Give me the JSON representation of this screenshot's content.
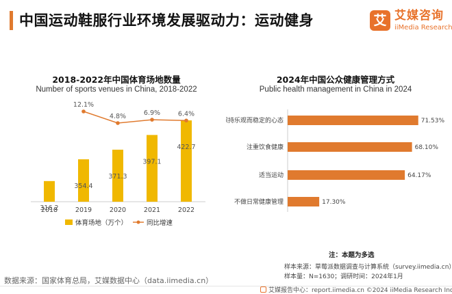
{
  "header": {
    "title": "中国运动鞋服行业环境发展驱动力：运动健身",
    "logo_mark": "艾",
    "logo_cn": "艾媒咨询",
    "logo_en": "iiMedia Research"
  },
  "colors": {
    "accent": "#e07a2e",
    "bar_yellow": "#f0b800",
    "line_orange": "#e07a2e",
    "hbar_orange": "#e07a2e"
  },
  "left_panel": {
    "title": "2018-2022年中国体育场地数量",
    "subtitle": "Number of sports venues in China, 2018-2022"
  },
  "right_panel": {
    "title": "2024年中国公众健康管理方式",
    "subtitle": "Public health management in China in 2024"
  },
  "chart_data": [
    {
      "type": "bar",
      "categories": [
        "2018",
        "2019",
        "2020",
        "2021",
        "2022"
      ],
      "series": [
        {
          "name": "体育场地（万个）",
          "type": "bar",
          "values": [
            316.2,
            354.4,
            371.3,
            397.1,
            422.7
          ],
          "labels": [
            "316.2",
            "354.4",
            "371.3",
            "397.1",
            "422.7"
          ]
        },
        {
          "name": "同比增速",
          "type": "line",
          "values": [
            null,
            12.1,
            4.8,
            6.9,
            6.4
          ],
          "labels": [
            "",
            "12.1%",
            "4.8%",
            "6.9%",
            "6.4%"
          ]
        }
      ],
      "legend": "bottom"
    },
    {
      "type": "bar",
      "orientation": "horizontal",
      "categories": [
        "保持乐观而稳定的心态",
        "注重饮食健康",
        "适当运动",
        "不做日常健康管理"
      ],
      "values": [
        71.53,
        68.1,
        64.17,
        17.3
      ],
      "labels": [
        "71.53%",
        "68.10%",
        "64.17%",
        "17.30%"
      ]
    }
  ],
  "notes": {
    "note": "注：本题为多选",
    "sample_source": "样本来源：草莓派数据调查与计算系统（survey.iimedia.cn）",
    "sample_size": "样本量：N=1630；调研时间：2024年1月"
  },
  "footer": {
    "source": "数据来源：国家体育总局，艾媒数据中心（data.iimedia.cn）",
    "report": "艾媒报告中心：report.iimedia.cn   ©2024 iiMedia Research Inc"
  }
}
